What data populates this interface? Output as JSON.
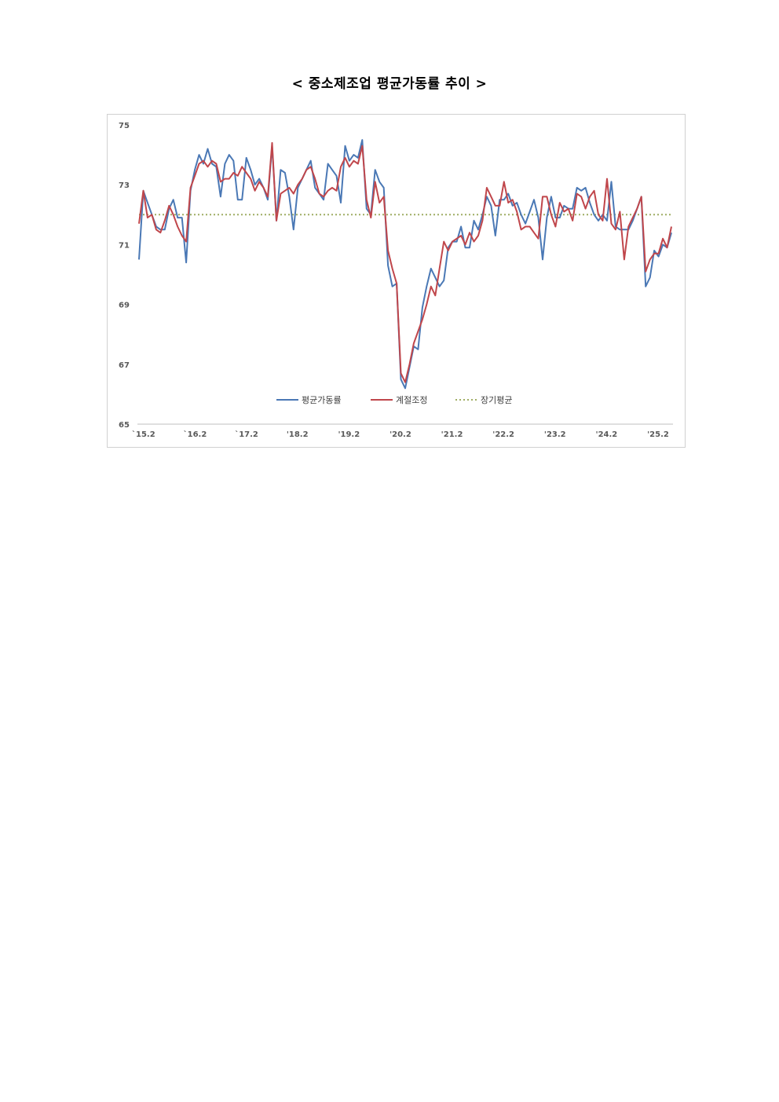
{
  "page": {
    "title": "< 중소제조업 평균가동률 추이 >"
  },
  "chart_data": {
    "type": "line",
    "title": "< 중소제조업 평균가동률 추이 >",
    "ylim": [
      65,
      75
    ],
    "yticks": [
      "75",
      "73",
      "71",
      "69",
      "67",
      "65"
    ],
    "ytick_values": [
      75,
      73,
      71,
      69,
      67,
      65
    ],
    "xtick_labels": [
      "`15.2",
      "`16.2",
      "`17.2",
      "'18.2",
      "'19.2",
      "'20.2",
      "'21.2",
      "'22.2",
      "'23.2",
      "'24.2",
      "'25.2"
    ],
    "xtick_index": [
      0,
      12,
      24,
      36,
      48,
      60,
      72,
      84,
      96,
      108,
      120
    ],
    "grid": false,
    "legend": "bottom-center",
    "colors": {
      "raw": "#4a78b5",
      "adjusted": "#c0464b",
      "average": "#9fad64"
    },
    "series": [
      {
        "name": "평균가동률",
        "values": [
          70.5,
          72.8,
          72.4,
          72.0,
          71.6,
          71.5,
          71.5,
          72.2,
          72.5,
          71.9,
          71.9,
          70.4,
          72.8,
          73.5,
          74.0,
          73.7,
          74.2,
          73.7,
          73.6,
          72.6,
          73.7,
          74.0,
          73.8,
          72.5,
          72.5,
          73.9,
          73.5,
          73.0,
          73.2,
          72.9,
          72.5,
          74.3,
          71.8,
          73.5,
          73.4,
          72.6,
          71.5,
          72.9,
          73.2,
          73.5,
          73.8,
          72.9,
          72.7,
          72.5,
          73.7,
          73.5,
          73.3,
          72.4,
          74.3,
          73.8,
          74.0,
          73.9,
          74.5,
          72.2,
          72.0,
          73.5,
          73.1,
          72.9,
          70.3,
          69.6,
          69.7,
          66.5,
          66.2,
          66.9,
          67.6,
          67.5,
          68.9,
          69.6,
          70.2,
          69.9,
          69.6,
          69.8,
          70.9,
          71.1,
          71.1,
          71.6,
          70.9,
          70.9,
          71.8,
          71.5,
          72.0,
          72.6,
          72.3,
          71.3,
          72.5,
          72.5,
          72.7,
          72.3,
          72.4,
          72.0,
          71.7,
          72.1,
          72.5,
          71.9,
          70.5,
          71.9,
          72.6,
          71.9,
          71.9,
          72.3,
          72.2,
          72.2,
          72.9,
          72.8,
          72.9,
          72.4,
          72.0,
          71.8,
          72.0,
          71.8,
          73.1,
          71.6,
          71.5,
          71.5,
          71.5,
          71.8,
          72.2,
          72.6,
          69.6,
          69.9,
          70.8,
          70.6,
          71.0,
          70.9,
          71.4
        ]
      },
      {
        "name": "계절조정",
        "values": [
          71.7,
          72.8,
          71.9,
          72.0,
          71.5,
          71.4,
          71.8,
          72.3,
          72.0,
          71.6,
          71.3,
          71.1,
          72.9,
          73.3,
          73.7,
          73.8,
          73.6,
          73.8,
          73.7,
          73.1,
          73.2,
          73.2,
          73.4,
          73.3,
          73.6,
          73.4,
          73.2,
          72.8,
          73.1,
          72.9,
          72.6,
          74.4,
          71.8,
          72.7,
          72.8,
          72.9,
          72.7,
          73.0,
          73.2,
          73.5,
          73.6,
          73.2,
          72.7,
          72.6,
          72.8,
          72.9,
          72.8,
          73.6,
          73.9,
          73.6,
          73.8,
          73.7,
          74.3,
          72.5,
          71.9,
          73.1,
          72.4,
          72.6,
          70.8,
          70.2,
          69.7,
          66.7,
          66.4,
          67.0,
          67.7,
          68.1,
          68.5,
          69.0,
          69.6,
          69.3,
          70.2,
          71.1,
          70.8,
          71.1,
          71.2,
          71.3,
          71.0,
          71.4,
          71.1,
          71.3,
          71.8,
          72.9,
          72.6,
          72.3,
          72.3,
          73.1,
          72.4,
          72.5,
          72.1,
          71.5,
          71.6,
          71.6,
          71.4,
          71.2,
          72.6,
          72.6,
          72.0,
          71.6,
          72.4,
          72.1,
          72.2,
          71.8,
          72.7,
          72.6,
          72.2,
          72.6,
          72.8,
          72.0,
          71.8,
          73.2,
          71.7,
          71.5,
          72.1,
          70.5,
          71.6,
          71.9,
          72.2,
          72.6,
          70.1,
          70.5,
          70.7,
          70.7,
          71.2,
          70.9,
          71.6
        ]
      },
      {
        "name": "장기평균",
        "values": [
          72.0,
          72.0
        ]
      }
    ]
  }
}
